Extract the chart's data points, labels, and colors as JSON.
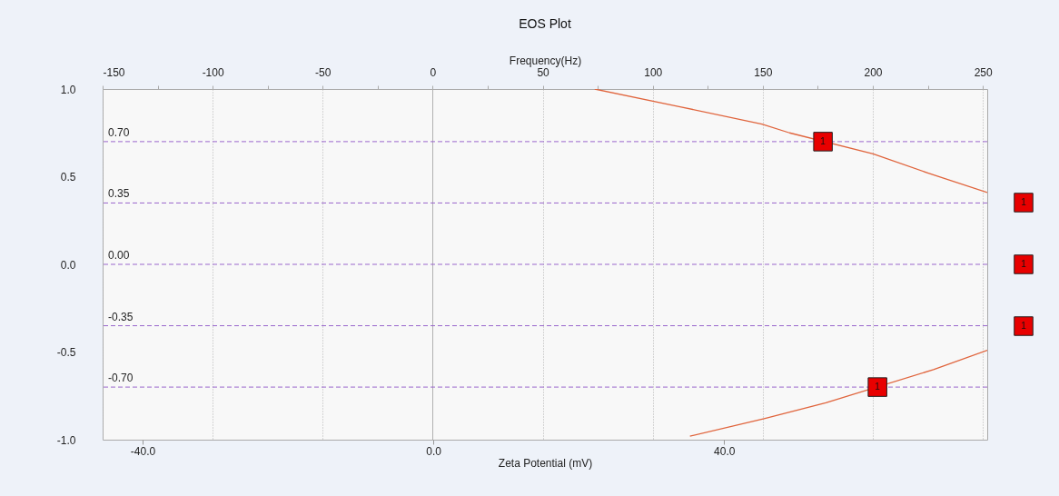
{
  "chart_data": {
    "type": "line",
    "title": "EOS Plot",
    "xlabel": "Zeta Potential (mV)",
    "x2label": "Frequency(Hz)",
    "xlim": [
      -45.5,
      76.2
    ],
    "xticks": [
      {
        "value": -40,
        "label": "-40.0"
      },
      {
        "value": 0,
        "label": "0.0"
      },
      {
        "value": 40,
        "label": "40.0"
      }
    ],
    "x2lim": [
      -150,
      252
    ],
    "x2ticks": [
      -150,
      {
        "value": -125,
        "label": null
      },
      -100,
      {
        "value": -75,
        "label": null
      },
      -50,
      {
        "value": -25,
        "label": null
      },
      0,
      {
        "value": 25,
        "label": null
      },
      50,
      {
        "value": 75,
        "label": null
      },
      100,
      {
        "value": 125,
        "label": null
      },
      150,
      {
        "value": 175,
        "label": null
      },
      200,
      {
        "value": 225,
        "label": null
      },
      250
    ],
    "ylim": [
      -1,
      1
    ],
    "yticks": [
      {
        "value": 1,
        "label": "1.0"
      },
      {
        "value": 0.5,
        "label": "0.5"
      },
      {
        "value": 0,
        "label": "0.0"
      },
      {
        "value": -0.5,
        "label": "-0.5"
      },
      {
        "value": -1,
        "label": "-1.0"
      }
    ],
    "grid": "x",
    "marker": "none",
    "line_style": "solid",
    "series": [
      {
        "color": "#e0643c",
        "x": [
          22.2,
          33.8,
          45.2,
          49.0,
          60.5,
          68.1,
          76.2
        ],
        "values": [
          1.0,
          0.9,
          0.8,
          0.75,
          0.63,
          0.52,
          0.41
        ]
      },
      {
        "color": "#e0643c",
        "x": [
          35.3,
          45.5,
          54.0,
          68.8,
          76.2
        ],
        "values": [
          -0.98,
          -0.88,
          -0.79,
          -0.6,
          -0.49
        ]
      }
    ],
    "ref_lines": [
      {
        "axis": "y",
        "value": 0.7,
        "label": "0.70",
        "color": "#9966cc",
        "line_style": "dashed"
      },
      {
        "axis": "y",
        "value": 0.35,
        "label": "0.35",
        "color": "#9966cc",
        "line_style": "dashed"
      },
      {
        "axis": "y",
        "value": 0,
        "label": "0.00",
        "color": "#9966cc",
        "line_style": "dashed"
      },
      {
        "axis": "y",
        "value": -0.35,
        "label": "-0.35",
        "color": "#9966cc",
        "line_style": "dashed"
      },
      {
        "axis": "y",
        "value": -0.7,
        "label": "-0.70",
        "color": "#9966cc",
        "line_style": "dashed"
      }
    ],
    "annotations": [
      {
        "text": "1",
        "x": 53.6,
        "y": 0.7
      },
      "1",
      "1",
      "1",
      {
        "text": "1",
        "x": 61.1,
        "y": -0.7
      }
    ]
  }
}
